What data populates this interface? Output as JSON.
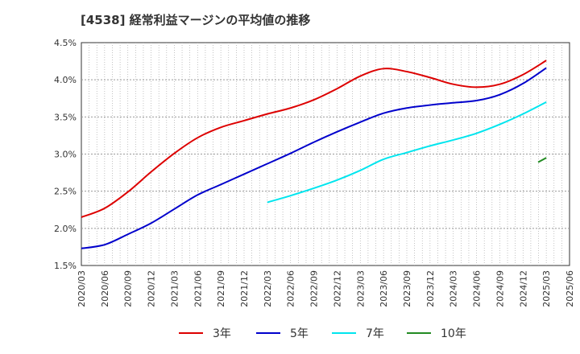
{
  "chart_data": {
    "type": "line",
    "title": "[4538]  経常利益マージンの平均値の推移",
    "xlabel": "",
    "ylabel": "",
    "ylim": [
      1.5,
      4.5
    ],
    "y_ticks": [
      "4.5%",
      "4.0%",
      "3.5%",
      "3.0%",
      "2.5%",
      "2.0%",
      "1.5%"
    ],
    "y_tick_values": [
      4.5,
      4.0,
      3.5,
      3.0,
      2.5,
      2.0,
      1.5
    ],
    "categories": [
      "2020/03",
      "2020/06",
      "2020/09",
      "2020/12",
      "2021/03",
      "2021/06",
      "2021/09",
      "2021/12",
      "2022/03",
      "2022/06",
      "2022/09",
      "2022/12",
      "2023/03",
      "2023/06",
      "2023/09",
      "2023/12",
      "2024/03",
      "2024/06",
      "2024/09",
      "2024/12",
      "2025/03",
      "2025/06"
    ],
    "grid": true,
    "legend_position": "bottom",
    "series": [
      {
        "name": "3年",
        "color": "#dd0000",
        "values": [
          2.15,
          2.27,
          2.49,
          2.76,
          3.01,
          3.22,
          3.36,
          3.45,
          3.54,
          3.62,
          3.73,
          3.88,
          4.05,
          4.15,
          4.11,
          4.03,
          3.94,
          3.9,
          3.94,
          4.07,
          4.26,
          null
        ]
      },
      {
        "name": "5年",
        "color": "#0000cc",
        "values": [
          1.73,
          1.78,
          1.92,
          2.07,
          2.26,
          2.45,
          2.59,
          2.73,
          2.87,
          3.01,
          3.16,
          3.3,
          3.43,
          3.55,
          3.62,
          3.66,
          3.69,
          3.72,
          3.8,
          3.95,
          4.16,
          null
        ]
      },
      {
        "name": "7年",
        "color": "#00e5ee",
        "values": [
          null,
          null,
          null,
          null,
          null,
          null,
          null,
          null,
          2.35,
          2.44,
          2.54,
          2.65,
          2.78,
          2.93,
          3.02,
          3.11,
          3.19,
          3.28,
          3.4,
          3.54,
          3.7,
          null
        ]
      },
      {
        "name": "10年",
        "color": "#228b22",
        "values": [
          null,
          null,
          null,
          null,
          null,
          null,
          null,
          null,
          null,
          null,
          null,
          null,
          null,
          null,
          null,
          null,
          null,
          null,
          null,
          null,
          2.89,
          null
        ],
        "segment": [
          2.89,
          2.95
        ]
      }
    ]
  }
}
